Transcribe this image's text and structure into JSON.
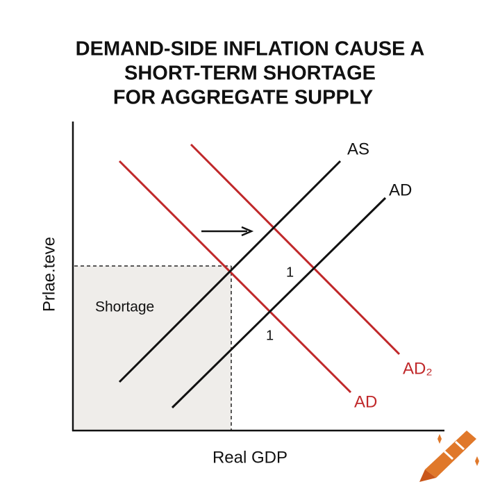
{
  "header": {
    "title": [
      "DEMAND-SIDE INFLATION CAUSE A",
      "SHORT-TERM SHORTAGE",
      "FOR AGGREGATE SUPPLY"
    ]
  },
  "axes": {
    "y_label": "Prlae.teve",
    "x_label": "Real GDP"
  },
  "curves": {
    "as_label": "AS",
    "ad_black_label": "AD",
    "ad2_label": "AD₂",
    "ad_red_label": "AD"
  },
  "annotations": {
    "shortage": "Shortage",
    "marker_upper": "1",
    "marker_lower": "1"
  }
}
